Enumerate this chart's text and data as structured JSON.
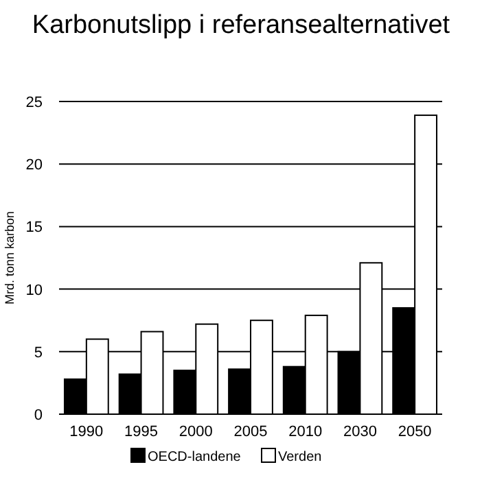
{
  "chart_data": {
    "type": "bar",
    "title": "Karbonutslipp i referansealternativet",
    "ylabel": "Mrd. tonn karbon",
    "categories": [
      "1990",
      "1995",
      "2000",
      "2005",
      "2010",
      "2030",
      "2050"
    ],
    "series": [
      {
        "name": "OECD-landene",
        "color": "#000000",
        "values": [
          2.8,
          3.2,
          3.5,
          3.6,
          3.8,
          5.0,
          8.5
        ]
      },
      {
        "name": "Verden",
        "color": "#ffffff",
        "values": [
          6.0,
          6.6,
          7.2,
          7.5,
          7.9,
          12.1,
          23.9
        ]
      }
    ],
    "ylim": [
      0,
      25
    ],
    "yticks": [
      0,
      5,
      10,
      15,
      20,
      25
    ],
    "grid": "y",
    "legend": "bottom"
  }
}
